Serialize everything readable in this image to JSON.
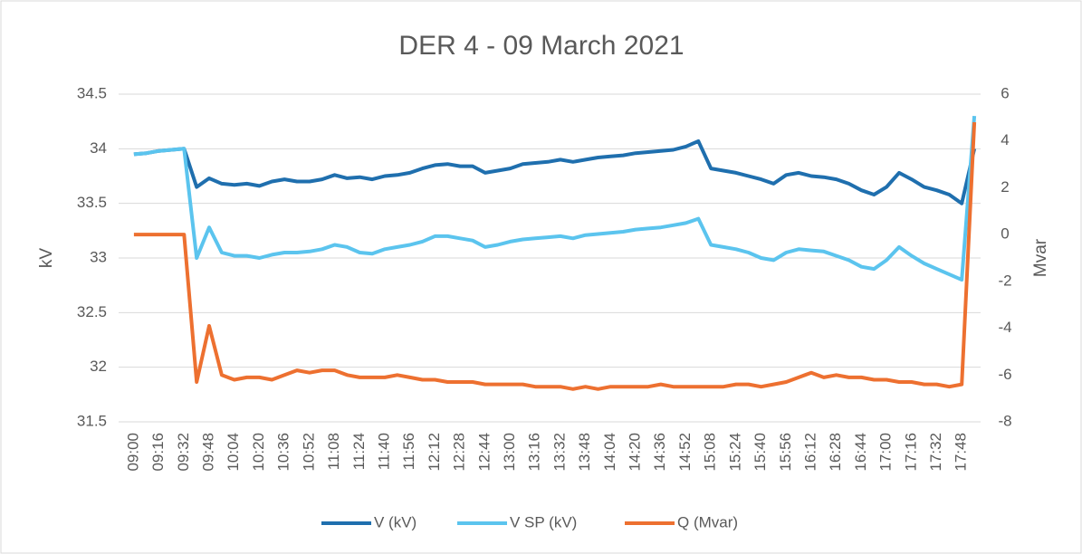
{
  "chart_data": {
    "type": "line",
    "title": "DER 4 - 09 March 2021",
    "y_label": "kV",
    "y2_label": "Mvar",
    "categories": [
      "09:00",
      null,
      "09:16",
      null,
      "09:32",
      null,
      "09:48",
      null,
      "10:04",
      null,
      "10:20",
      null,
      "10:36",
      null,
      "10:52",
      null,
      "11:08",
      null,
      "11:24",
      null,
      "11:40",
      null,
      "11:56",
      null,
      "12:12",
      null,
      "12:28",
      null,
      "12:44",
      null,
      "13:00",
      null,
      "13:16",
      null,
      "13:32",
      null,
      "13:48",
      null,
      "14:04",
      null,
      "14:20",
      null,
      "14:36",
      null,
      "14:52",
      null,
      "15:08",
      null,
      "15:24",
      null,
      "15:40",
      null,
      "15:56",
      null,
      "16:12",
      null,
      "16:28",
      null,
      "16:44",
      null,
      "17:00",
      null,
      "17:16",
      null,
      "17:32",
      null,
      "17:48",
      null
    ],
    "series": [
      {
        "name": "V (kV)",
        "color": "#1f6fae",
        "axis": "y",
        "values": [
          33.95,
          33.96,
          33.98,
          33.99,
          34.0,
          33.65,
          33.73,
          33.68,
          33.67,
          33.68,
          33.66,
          33.7,
          33.72,
          33.7,
          33.7,
          33.72,
          33.76,
          33.73,
          33.74,
          33.72,
          33.75,
          33.76,
          33.78,
          33.82,
          33.85,
          33.86,
          33.84,
          33.84,
          33.78,
          33.8,
          33.82,
          33.86,
          33.87,
          33.88,
          33.9,
          33.88,
          33.9,
          33.92,
          33.93,
          33.94,
          33.96,
          33.97,
          33.98,
          33.99,
          34.02,
          34.07,
          33.82,
          33.8,
          33.78,
          33.75,
          33.72,
          33.68,
          33.76,
          33.78,
          33.75,
          33.74,
          33.72,
          33.68,
          33.62,
          33.58,
          33.65,
          33.78,
          33.72,
          33.65,
          33.62,
          33.58,
          33.5,
          34.0
        ]
      },
      {
        "name": "V SP (kV)",
        "color": "#5bc4ee",
        "axis": "y",
        "values": [
          33.95,
          33.96,
          33.98,
          33.99,
          34.0,
          33.0,
          33.28,
          33.05,
          33.02,
          33.02,
          33.0,
          33.03,
          33.05,
          33.05,
          33.06,
          33.08,
          33.12,
          33.1,
          33.05,
          33.04,
          33.08,
          33.1,
          33.12,
          33.15,
          33.2,
          33.2,
          33.18,
          33.16,
          33.1,
          33.12,
          33.15,
          33.17,
          33.18,
          33.19,
          33.2,
          33.18,
          33.21,
          33.22,
          33.23,
          33.24,
          33.26,
          33.27,
          33.28,
          33.3,
          33.32,
          33.36,
          33.12,
          33.1,
          33.08,
          33.05,
          33.0,
          32.98,
          33.05,
          33.08,
          33.07,
          33.06,
          33.02,
          32.98,
          32.92,
          32.9,
          32.98,
          33.1,
          33.02,
          32.95,
          32.9,
          32.85,
          32.8,
          34.3
        ]
      },
      {
        "name": "Q (Mvar)",
        "color": "#ed7030",
        "axis": "y2",
        "values": [
          0,
          0,
          0,
          0,
          0,
          -6.3,
          -3.9,
          -6.0,
          -6.2,
          -6.1,
          -6.1,
          -6.2,
          -6.0,
          -5.8,
          -5.9,
          -5.8,
          -5.8,
          -6.0,
          -6.1,
          -6.1,
          -6.1,
          -6.0,
          -6.1,
          -6.2,
          -6.2,
          -6.3,
          -6.3,
          -6.3,
          -6.4,
          -6.4,
          -6.4,
          -6.4,
          -6.5,
          -6.5,
          -6.5,
          -6.6,
          -6.5,
          -6.6,
          -6.5,
          -6.5,
          -6.5,
          -6.5,
          -6.4,
          -6.5,
          -6.5,
          -6.5,
          -6.5,
          -6.5,
          -6.4,
          -6.4,
          -6.5,
          -6.4,
          -6.3,
          -6.1,
          -5.9,
          -6.1,
          -6.0,
          -6.1,
          -6.1,
          -6.2,
          -6.2,
          -6.3,
          -6.3,
          -6.4,
          -6.4,
          -6.5,
          -6.4,
          4.8
        ]
      }
    ],
    "ylim": [
      31.5,
      34.5
    ],
    "yticks": [
      31.5,
      32,
      32.5,
      33,
      33.5,
      34,
      34.5
    ],
    "y2lim": [
      -8,
      6
    ],
    "y2ticks": [
      -8,
      -6,
      -4,
      -2,
      0,
      2,
      4,
      6
    ],
    "grid": true,
    "legend": "bottom"
  }
}
